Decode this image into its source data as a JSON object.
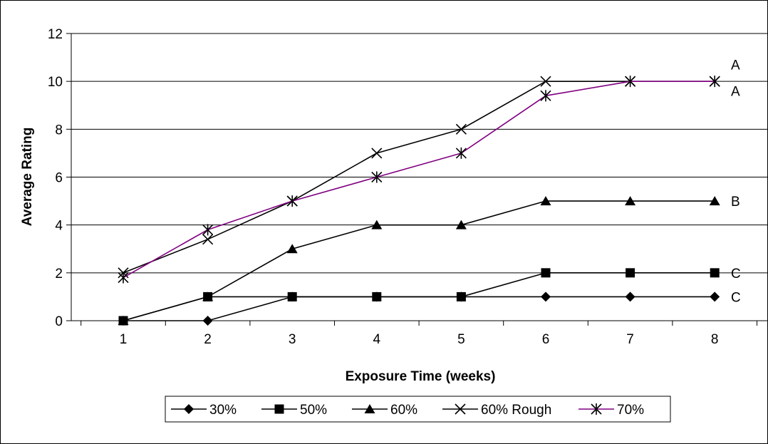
{
  "chart_data": {
    "type": "line",
    "title": "",
    "xlabel": "Exposure Time (weeks)",
    "ylabel": "Average Rating",
    "x": [
      1,
      2,
      3,
      4,
      5,
      6,
      7,
      8
    ],
    "xticks": [
      "1",
      "2",
      "3",
      "4",
      "5",
      "6",
      "7",
      "8"
    ],
    "yticks": [
      "0",
      "2",
      "4",
      "6",
      "8",
      "10",
      "12"
    ],
    "ylim": [
      0,
      12
    ],
    "grid": "horizontal",
    "legend_position": "bottom",
    "series": [
      {
        "name": "30%",
        "values": [
          0,
          0,
          1,
          1,
          1,
          1,
          1,
          1
        ],
        "marker": "diamond",
        "color": "#000000"
      },
      {
        "name": "50%",
        "values": [
          0,
          1,
          1,
          1,
          1,
          2,
          2,
          2
        ],
        "marker": "square",
        "color": "#000000"
      },
      {
        "name": "60%",
        "values": [
          0,
          1,
          3,
          4,
          4,
          5,
          5,
          5
        ],
        "marker": "triangle",
        "color": "#000000"
      },
      {
        "name": "60% Rough",
        "values": [
          2,
          3.4,
          5,
          7,
          8,
          10,
          10,
          10
        ],
        "marker": "x",
        "color": "#000000"
      },
      {
        "name": "70%",
        "values": [
          1.8,
          3.8,
          5,
          6,
          7,
          9.4,
          10,
          10
        ],
        "marker": "star",
        "color": "#800080"
      }
    ],
    "annotations": [
      {
        "text": "A",
        "y": 10.7
      },
      {
        "text": "A",
        "y": 9.6
      },
      {
        "text": "B",
        "y": 5
      },
      {
        "text": "C",
        "y": 2
      },
      {
        "text": "C",
        "y": 1
      }
    ]
  }
}
